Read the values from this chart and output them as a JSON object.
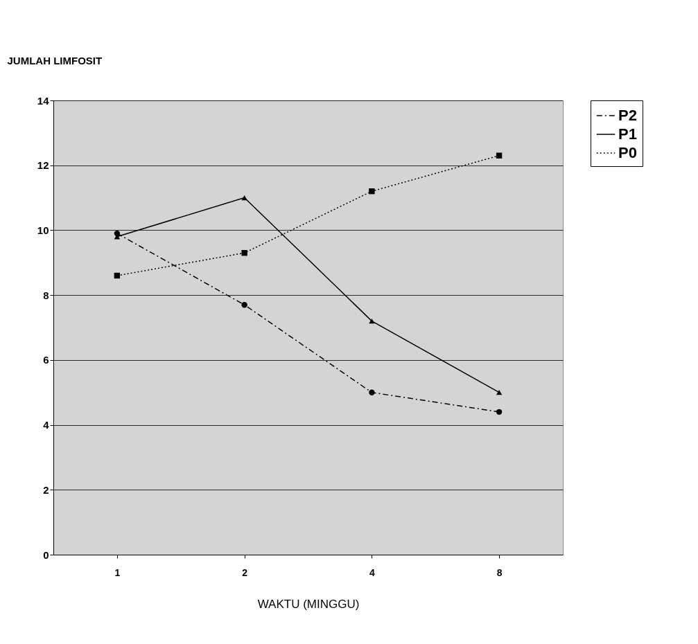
{
  "chart_data": {
    "type": "line",
    "xlabel": "WAKTU (MINGGU)",
    "ylabel": "JUMLAH LIMFOSIT",
    "categories": [
      "1",
      "2",
      "4",
      "8"
    ],
    "ylim": [
      0,
      14
    ],
    "yticks": [
      0,
      2,
      4,
      6,
      8,
      10,
      12,
      14
    ],
    "grid": "y",
    "legend": "top right",
    "series": [
      {
        "name": "P2",
        "color": "#000000",
        "marker": "circle",
        "line_style": "dashdot",
        "values": [
          9.9,
          7.7,
          5.0,
          4.4
        ]
      },
      {
        "name": "P1",
        "color": "#000000",
        "marker": "triangle",
        "line_style": "solid",
        "values": [
          9.8,
          11.0,
          7.2,
          5.0
        ]
      },
      {
        "name": "P0",
        "color": "#000000",
        "marker": "square",
        "line_style": "dotted",
        "values": [
          8.6,
          9.3,
          11.2,
          12.3
        ]
      }
    ]
  }
}
